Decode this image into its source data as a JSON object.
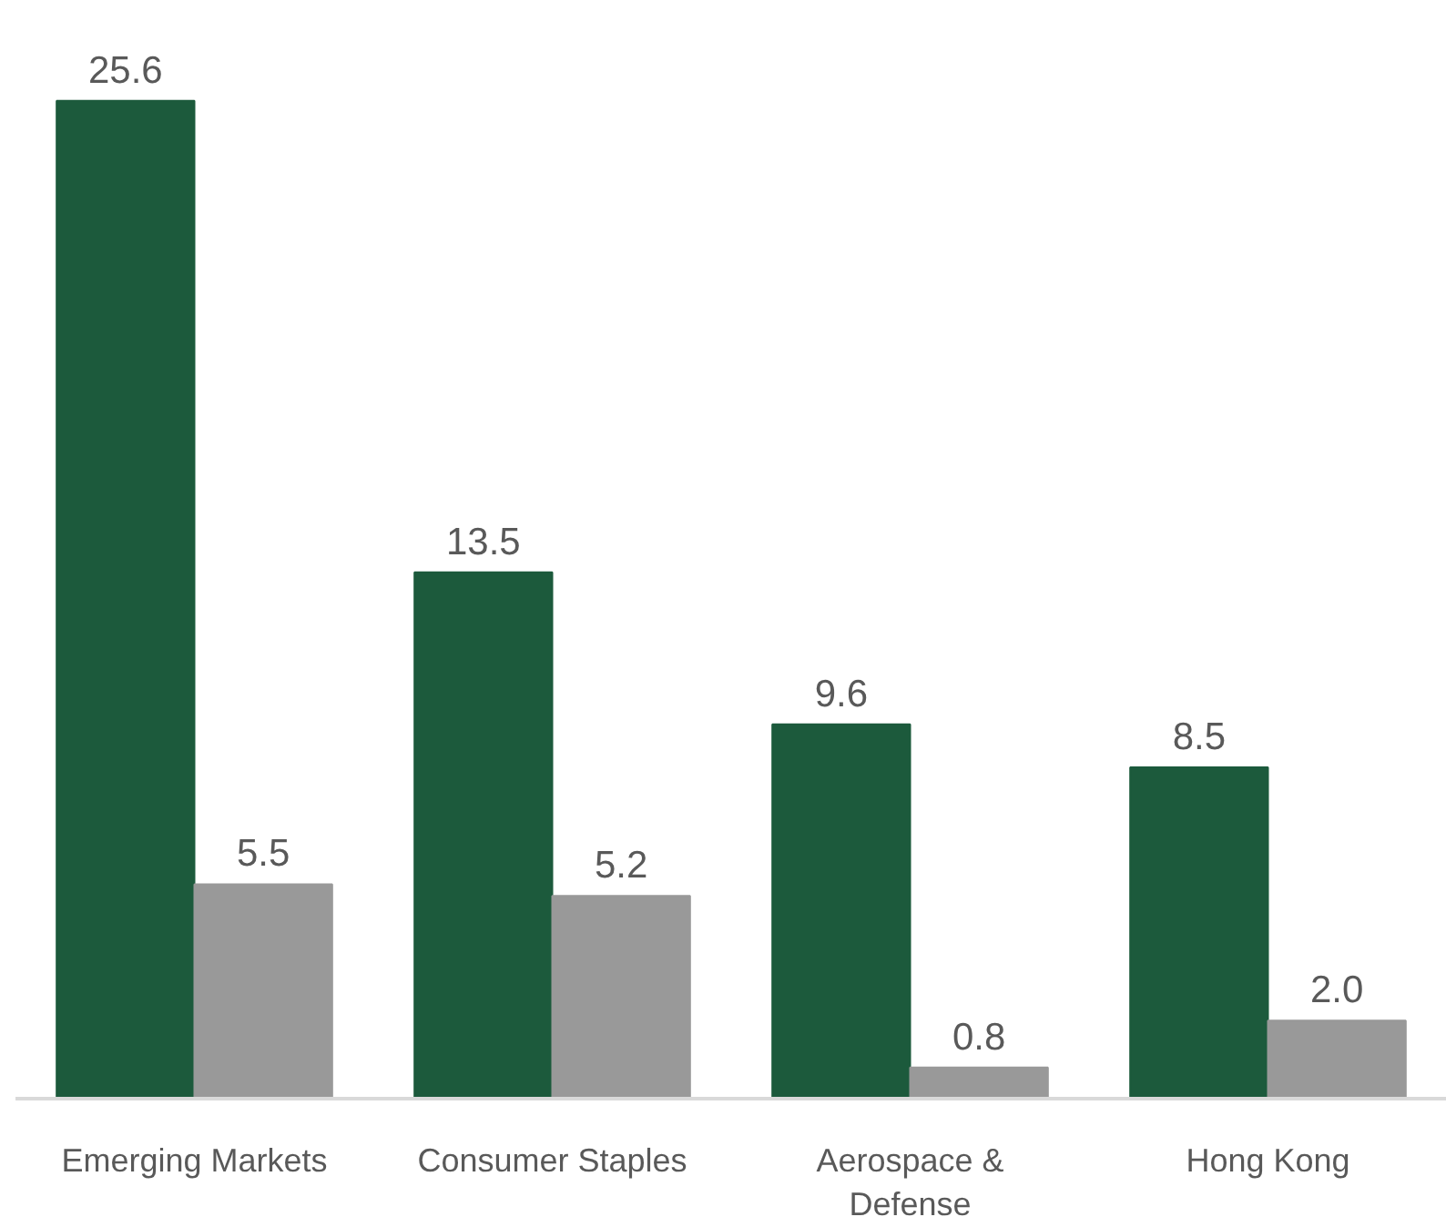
{
  "chart_data": {
    "type": "bar",
    "categories": [
      "Emerging Markets",
      "Consumer Staples",
      "Aerospace & Defense",
      "Hong Kong"
    ],
    "series": [
      {
        "color": "#1c5a3c",
        "values": [
          25.6,
          13.5,
          9.6,
          8.5
        ],
        "value_labels": [
          "25.6",
          "13.5",
          "9.6",
          "8.5"
        ]
      },
      {
        "color": "#999999",
        "values": [
          5.5,
          5.2,
          0.8,
          2.0
        ],
        "value_labels": [
          "5.5",
          "5.2",
          "0.8",
          "2.0"
        ]
      }
    ],
    "grid": false
  }
}
